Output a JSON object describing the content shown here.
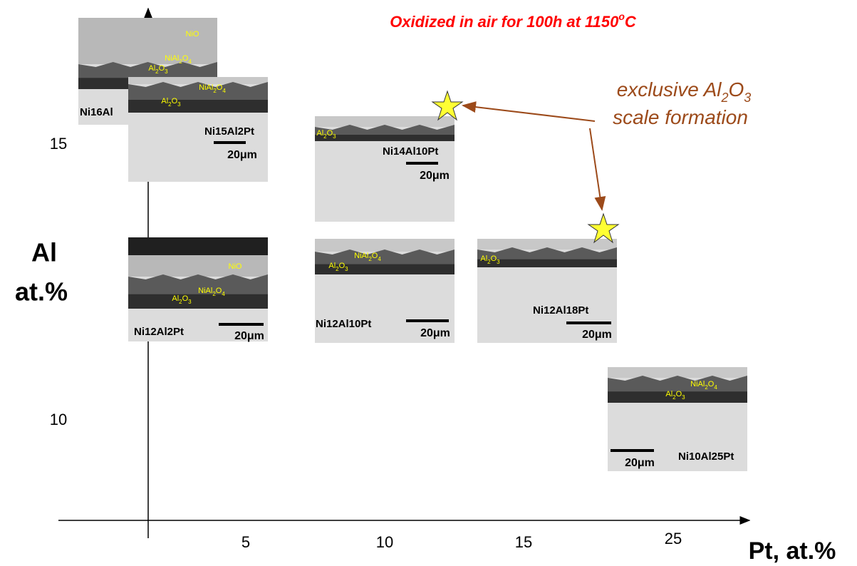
{
  "title": [
    "Oxidized in air for 100h at 1150",
    "o",
    "C"
  ],
  "annotation": [
    [
      "exclusive Al",
      "2",
      "O",
      "3"
    ],
    [
      "scale formation"
    ]
  ],
  "y_axis": {
    "label": [
      "Al",
      "at.%"
    ],
    "ticks": [
      15,
      10
    ]
  },
  "x_axis": {
    "label": "Pt, at.%",
    "ticks": [
      5,
      10,
      15,
      25
    ]
  },
  "samples": [
    {
      "name": "Ni16Al",
      "phases": [
        [
          "NiO"
        ],
        [
          "NiAl",
          "2",
          "O",
          "4"
        ],
        [
          "Al",
          "2",
          "O",
          "3"
        ]
      ]
    },
    {
      "name": "Ni15Al2Pt",
      "scale": "20μm",
      "phases": [
        [
          "NiAl",
          "2",
          "O",
          "4"
        ],
        [
          "Al",
          "2",
          "O",
          "3"
        ]
      ]
    },
    {
      "name": "Ni14Al10Pt",
      "scale": "20μm",
      "phases": [
        [
          "Al",
          "2",
          "O",
          "3"
        ]
      ]
    },
    {
      "name": "Ni12Al2Pt",
      "scale": "20μm",
      "phases": [
        [
          "NiO"
        ],
        [
          "NiAl",
          "2",
          "O",
          "4"
        ],
        [
          "Al",
          "2",
          "O",
          "3"
        ]
      ]
    },
    {
      "name": "Ni12Al10Pt",
      "scale": "20μm",
      "phases": [
        [
          "NiAl",
          "2",
          "O",
          "4"
        ],
        [
          "Al",
          "2",
          "O",
          "3"
        ]
      ]
    },
    {
      "name": "Ni12Al18Pt",
      "scale": "20μm",
      "phases": [
        [
          "Al",
          "2",
          "O",
          "3"
        ]
      ]
    },
    {
      "name": "Ni10Al25Pt",
      "scale": "20μm",
      "phases": [
        [
          "NiAl",
          "2",
          "O",
          "4"
        ],
        [
          "Al",
          "2",
          "O",
          "3"
        ]
      ]
    }
  ]
}
